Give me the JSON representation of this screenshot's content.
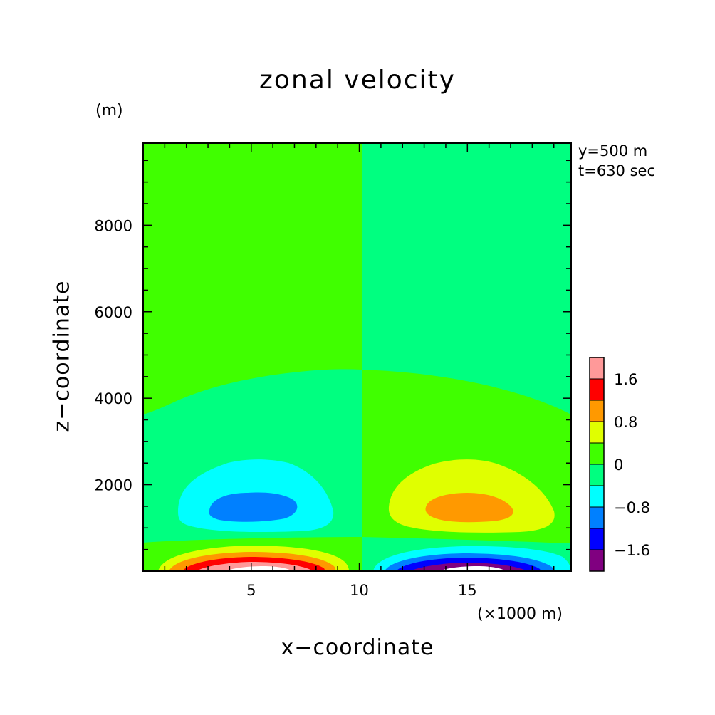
{
  "chart_data": {
    "type": "contour",
    "title": "zonal velocity",
    "xlabel": "x−coordinate",
    "ylabel": "z−coordinate",
    "x_unit": "(×1000 m)",
    "y_unit": "(m)",
    "annotations": [
      "y=500 m",
      "t=630 sec"
    ],
    "xlim": [
      0,
      19.8
    ],
    "ylim": [
      0,
      9900
    ],
    "x_ticks": [
      5,
      10,
      15
    ],
    "x_tick_labels": [
      "5",
      "10",
      "15"
    ],
    "y_ticks": [
      2000,
      4000,
      6000,
      8000
    ],
    "y_tick_labels": [
      "2000",
      "4000",
      "6000",
      "8000"
    ],
    "grid": false,
    "colorbar": {
      "levels": [
        -2.0,
        -1.6,
        -1.2,
        -0.8,
        -0.4,
        0.0,
        0.4,
        0.8,
        1.2,
        1.6,
        2.0
      ],
      "labels": [
        "1.6",
        "0.8",
        "0",
        "−0.8",
        "−1.6"
      ],
      "label_values": [
        1.6,
        0.8,
        0.0,
        -0.8,
        -1.6
      ],
      "colors": [
        "#800080",
        "#0000ff",
        "#0080ff",
        "#00ffff",
        "#00ff80",
        "#40ff00",
        "#e0ff00",
        "#ff9900",
        "#ff0000",
        "#ff9999"
      ]
    },
    "regions": [
      {
        "name": "upper-left-weak-positive",
        "x": [
          0,
          10.1
        ],
        "z": [
          3700,
          9900
        ],
        "value": 0.2
      },
      {
        "name": "upper-right-weak-negative",
        "x": [
          10.1,
          19.8
        ],
        "z": [
          3700,
          9900
        ],
        "value": -0.2
      },
      {
        "name": "negative-core-left",
        "x_center": 5.8,
        "z_center": 1500,
        "min": -1.0
      },
      {
        "name": "positive-core-right",
        "x_center": 14.8,
        "z_center": 1500,
        "max": 1.0
      },
      {
        "name": "surface-positive-max",
        "x_center": 5.8,
        "z_center": 0,
        "max": 2.2
      },
      {
        "name": "surface-negative-min",
        "x_center": 14.8,
        "z_center": 0,
        "min": -2.2
      }
    ]
  }
}
